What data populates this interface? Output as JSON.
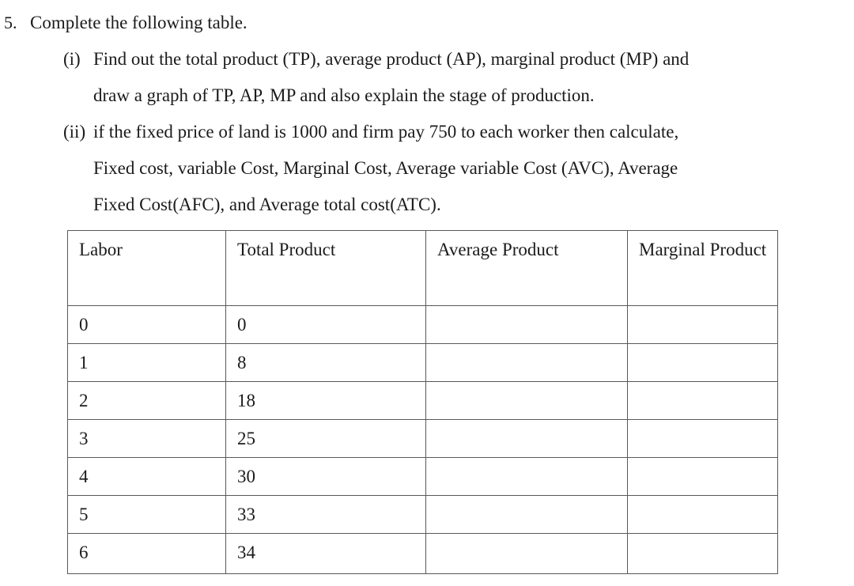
{
  "question": {
    "number": "5.",
    "title": "Complete the following table."
  },
  "parts": [
    {
      "label": "(i)",
      "lines": [
        "Find out the total product (TP), average product (AP), marginal product (MP) and",
        "draw a graph of TP, AP, MP and also explain the stage of production."
      ]
    },
    {
      "label": "(ii)",
      "lines": [
        "if the fixed price of land is 1000 and firm pay 750 to each worker then calculate,",
        "Fixed cost, variable Cost, Marginal Cost, Average variable Cost (AVC), Average",
        "Fixed Cost(AFC), and Average total cost(ATC)."
      ]
    }
  ],
  "table": {
    "headers": [
      "Labor",
      "Total Product",
      "Average Product",
      "Marginal Product"
    ],
    "rows": [
      {
        "labor": "0",
        "total_product": "0",
        "average_product": "",
        "marginal_product": ""
      },
      {
        "labor": "1",
        "total_product": "8",
        "average_product": "",
        "marginal_product": ""
      },
      {
        "labor": "2",
        "total_product": "18",
        "average_product": "",
        "marginal_product": ""
      },
      {
        "labor": "3",
        "total_product": "25",
        "average_product": "",
        "marginal_product": ""
      },
      {
        "labor": "4",
        "total_product": "30",
        "average_product": "",
        "marginal_product": ""
      },
      {
        "labor": "5",
        "total_product": "33",
        "average_product": "",
        "marginal_product": ""
      },
      {
        "labor": "6",
        "total_product": "34",
        "average_product": "",
        "marginal_product": ""
      }
    ]
  }
}
